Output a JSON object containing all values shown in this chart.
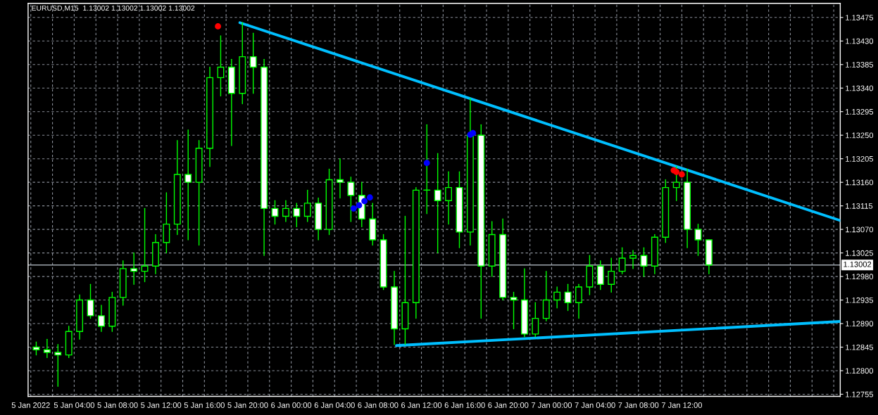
{
  "chart_data": {
    "type": "candlestick",
    "title": "EURUSD,M15  1.13002 1.13002 1.13002 1.13002",
    "color": "#00ff00",
    "x": [
      "2022-01-05T00:30",
      "2022-01-05T01:30",
      "2022-01-05T02:30",
      "2022-01-05T03:30",
      "2022-01-05T04:30",
      "2022-01-05T05:30",
      "2022-01-05T06:30",
      "2022-01-05T07:30",
      "2022-01-05T08:30",
      "2022-01-05T09:30",
      "2022-01-05T10:30",
      "2022-01-05T11:30",
      "2022-01-05T12:30",
      "2022-01-05T13:30",
      "2022-01-05T14:30",
      "2022-01-05T15:30",
      "2022-01-05T16:30",
      "2022-01-05T17:30",
      "2022-01-05T18:30",
      "2022-01-05T19:30",
      "2022-01-05T20:30",
      "2022-01-05T21:30",
      "2022-01-05T22:30",
      "2022-01-05T23:30",
      "2022-01-06T00:30",
      "2022-01-06T01:30",
      "2022-01-06T02:30",
      "2022-01-06T03:30",
      "2022-01-06T04:30",
      "2022-01-06T05:30",
      "2022-01-06T06:30",
      "2022-01-06T07:30",
      "2022-01-06T08:30",
      "2022-01-06T09:30",
      "2022-01-06T10:30",
      "2022-01-06T11:30",
      "2022-01-06T12:30",
      "2022-01-06T13:30",
      "2022-01-06T14:30",
      "2022-01-06T15:30",
      "2022-01-06T16:30",
      "2022-01-06T17:30",
      "2022-01-06T18:30",
      "2022-01-06T19:30",
      "2022-01-06T20:30",
      "2022-01-06T21:30",
      "2022-01-06T22:30",
      "2022-01-06T23:30",
      "2022-01-07T00:30",
      "2022-01-07T01:30",
      "2022-01-07T02:30",
      "2022-01-07T03:30",
      "2022-01-07T04:30",
      "2022-01-07T05:30",
      "2022-01-07T06:30",
      "2022-01-07T07:30",
      "2022-01-07T08:30",
      "2022-01-07T09:30",
      "2022-01-07T10:30",
      "2022-01-07T11:30",
      "2022-01-07T12:30",
      "2022-01-07T13:30",
      "2022-01-07T14:30"
    ],
    "ohlc": [
      [
        1.12845,
        1.12855,
        1.1283,
        1.1284
      ],
      [
        1.1284,
        1.1286,
        1.12825,
        1.12835
      ],
      [
        1.12835,
        1.1285,
        1.1277,
        1.1283
      ],
      [
        1.1283,
        1.12885,
        1.12825,
        1.12875
      ],
      [
        1.12875,
        1.12945,
        1.1286,
        1.12935
      ],
      [
        1.12935,
        1.12965,
        1.129,
        1.12905
      ],
      [
        1.12905,
        1.12925,
        1.12875,
        1.12885
      ],
      [
        1.12885,
        1.1295,
        1.12875,
        1.1294
      ],
      [
        1.1294,
        1.1301,
        1.12925,
        1.12995
      ],
      [
        1.12995,
        1.13025,
        1.12965,
        1.1299
      ],
      [
        1.1299,
        1.1311,
        1.1297,
        1.13
      ],
      [
        1.13,
        1.1306,
        1.12985,
        1.13045
      ],
      [
        1.13045,
        1.1314,
        1.13025,
        1.1308
      ],
      [
        1.1308,
        1.1324,
        1.1306,
        1.13175
      ],
      [
        1.13175,
        1.1326,
        1.1305,
        1.1316
      ],
      [
        1.1316,
        1.1324,
        1.1304,
        1.13225
      ],
      [
        1.13225,
        1.1338,
        1.1319,
        1.1336
      ],
      [
        1.1336,
        1.1344,
        1.13325,
        1.1338
      ],
      [
        1.1338,
        1.13395,
        1.1323,
        1.1333
      ],
      [
        1.1333,
        1.13465,
        1.1331,
        1.134
      ],
      [
        1.134,
        1.13445,
        1.1333,
        1.1338
      ],
      [
        1.1338,
        1.13395,
        1.1302,
        1.1311
      ],
      [
        1.1311,
        1.13125,
        1.1308,
        1.13095
      ],
      [
        1.13095,
        1.13125,
        1.13085,
        1.1311
      ],
      [
        1.1311,
        1.1312,
        1.13075,
        1.13095
      ],
      [
        1.13095,
        1.13145,
        1.13085,
        1.1312
      ],
      [
        1.1312,
        1.1313,
        1.1305,
        1.1307
      ],
      [
        1.1307,
        1.13185,
        1.1306,
        1.13165
      ],
      [
        1.13165,
        1.13205,
        1.1313,
        1.1316
      ],
      [
        1.1316,
        1.1317,
        1.13085,
        1.13135
      ],
      [
        1.13135,
        1.1316,
        1.13075,
        1.1309
      ],
      [
        1.1309,
        1.1312,
        1.1304,
        1.1305
      ],
      [
        1.1305,
        1.1306,
        1.12955,
        1.1296
      ],
      [
        1.1296,
        1.1299,
        1.1285,
        1.1288
      ],
      [
        1.1288,
        1.13095,
        1.1285,
        1.1293
      ],
      [
        1.1293,
        1.1315,
        1.129,
        1.13145
      ],
      [
        1.13145,
        1.1327,
        1.131,
        1.13145
      ],
      [
        1.13145,
        1.13215,
        1.13025,
        1.13125
      ],
      [
        1.13125,
        1.1318,
        1.1308,
        1.1315
      ],
      [
        1.1315,
        1.1318,
        1.13035,
        1.13065
      ],
      [
        1.13065,
        1.1332,
        1.1304,
        1.1325
      ],
      [
        1.1325,
        1.1327,
        1.129,
        1.13
      ],
      [
        1.13,
        1.13085,
        1.1298,
        1.1306
      ],
      [
        1.1306,
        1.1309,
        1.12935,
        1.1294
      ],
      [
        1.1294,
        1.1295,
        1.1288,
        1.12935
      ],
      [
        1.12935,
        1.12995,
        1.12865,
        1.1287
      ],
      [
        1.1287,
        1.1293,
        1.12865,
        1.129
      ],
      [
        1.129,
        1.1299,
        1.12895,
        1.12935
      ],
      [
        1.12935,
        1.1296,
        1.1292,
        1.1295
      ],
      [
        1.1295,
        1.12965,
        1.12915,
        1.1293
      ],
      [
        1.1293,
        1.12965,
        1.129,
        1.1296
      ],
      [
        1.1296,
        1.1302,
        1.12945,
        1.13
      ],
      [
        1.13,
        1.1301,
        1.12955,
        1.12965
      ],
      [
        1.12965,
        1.13015,
        1.1295,
        1.1299
      ],
      [
        1.1299,
        1.13035,
        1.12985,
        1.13015
      ],
      [
        1.13015,
        1.1303,
        1.12995,
        1.1302
      ],
      [
        1.1302,
        1.13035,
        1.1298,
        1.13
      ],
      [
        1.13,
        1.1306,
        1.12985,
        1.13055
      ],
      [
        1.13055,
        1.13165,
        1.13045,
        1.1315
      ],
      [
        1.1315,
        1.1319,
        1.13125,
        1.1316
      ],
      [
        1.1316,
        1.13185,
        1.13035,
        1.1307
      ],
      [
        1.1307,
        1.1308,
        1.1302,
        1.1305
      ],
      [
        1.1305,
        1.1305,
        1.12985,
        1.13002
      ]
    ],
    "series": [
      {
        "type": "line",
        "color": "#00bfff",
        "x": [
          "2022-01-05T19:16",
          "2022-01-08T02:36"
        ],
        "values": [
          1.13465,
          1.13087
        ]
      },
      {
        "type": "line",
        "color": "#00bfff",
        "x": [
          "2022-01-06T09:42",
          "2022-01-08T02:36"
        ],
        "values": [
          1.12848,
          1.12894
        ]
      },
      {
        "type": "scatter",
        "color": "#ff0000",
        "x": [
          "2022-01-05T17:15",
          "2022-01-07T11:15",
          "2022-01-07T11:30",
          "2022-01-07T12:00"
        ],
        "values": [
          1.13458,
          1.13183,
          1.1318,
          1.13175
        ]
      },
      {
        "type": "scatter",
        "color": "#0000ff",
        "x": [
          "2022-01-06T05:45",
          "2022-01-06T06:15",
          "2022-01-06T06:45",
          "2022-01-06T07:15",
          "2022-01-06T12:30",
          "2022-01-06T16:30",
          "2022-01-06T16:45"
        ],
        "values": [
          1.1311,
          1.13116,
          1.13124,
          1.13131,
          1.13197,
          1.13251,
          1.13254
        ]
      }
    ],
    "ref_lines": [
      {
        "axis": "y",
        "value": 1.13002,
        "label": "1.13002",
        "color": "#a0a8b0"
      }
    ],
    "xlim": [
      "2022-01-04T23:45",
      "2022-01-08T02:36"
    ],
    "ylim": [
      1.12751,
      1.13502
    ],
    "xticks": [
      {
        "value": "2022-01-05T00:00",
        "label": "5 Jan 2022"
      },
      {
        "value": "2022-01-05T02:00",
        "label": null
      },
      {
        "value": "2022-01-05T04:00",
        "label": "5 Jan 04:00"
      },
      {
        "value": "2022-01-05T06:00",
        "label": null
      },
      {
        "value": "2022-01-05T08:00",
        "label": "5 Jan 08:00"
      },
      {
        "value": "2022-01-05T10:00",
        "label": null
      },
      {
        "value": "2022-01-05T12:00",
        "label": "5 Jan 12:00"
      },
      {
        "value": "2022-01-05T14:00",
        "label": null
      },
      {
        "value": "2022-01-05T16:00",
        "label": "5 Jan 16:00"
      },
      {
        "value": "2022-01-05T18:00",
        "label": null
      },
      {
        "value": "2022-01-05T20:00",
        "label": "5 Jan 20:00"
      },
      {
        "value": "2022-01-05T22:00",
        "label": null
      },
      {
        "value": "2022-01-06T00:00",
        "label": "6 Jan 00:00"
      },
      {
        "value": "2022-01-06T02:00",
        "label": null
      },
      {
        "value": "2022-01-06T04:00",
        "label": "6 Jan 04:00"
      },
      {
        "value": "2022-01-06T06:00",
        "label": null
      },
      {
        "value": "2022-01-06T08:00",
        "label": "6 Jan 08:00"
      },
      {
        "value": "2022-01-06T10:00",
        "label": null
      },
      {
        "value": "2022-01-06T12:00",
        "label": "6 Jan 12:00"
      },
      {
        "value": "2022-01-06T14:00",
        "label": null
      },
      {
        "value": "2022-01-06T16:00",
        "label": "6 Jan 16:00"
      },
      {
        "value": "2022-01-06T18:00",
        "label": null
      },
      {
        "value": "2022-01-06T20:00",
        "label": "6 Jan 20:00"
      },
      {
        "value": "2022-01-06T22:00",
        "label": null
      },
      {
        "value": "2022-01-07T00:00",
        "label": "7 Jan 00:00"
      },
      {
        "value": "2022-01-07T02:00",
        "label": null
      },
      {
        "value": "2022-01-07T04:00",
        "label": "7 Jan 04:00"
      },
      {
        "value": "2022-01-07T06:00",
        "label": null
      },
      {
        "value": "2022-01-07T08:00",
        "label": "7 Jan 08:00"
      },
      {
        "value": "2022-01-07T10:00",
        "label": null
      },
      {
        "value": "2022-01-07T12:00",
        "label": "7 Jan 12:00"
      },
      {
        "value": "2022-01-07T14:00",
        "label": null
      },
      {
        "value": "2022-01-07T16:00",
        "label": null
      },
      {
        "value": "2022-01-07T18:00",
        "label": null
      },
      {
        "value": "2022-01-07T20:00",
        "label": null
      },
      {
        "value": "2022-01-07T22:00",
        "label": null
      },
      {
        "value": "2022-01-08T00:00",
        "label": null
      },
      {
        "value": "2022-01-08T02:00",
        "label": null
      }
    ],
    "yticks": [
      1.12755,
      {
        "value": 1.128,
        "label": "1.12800"
      },
      1.12845,
      {
        "value": 1.1289,
        "label": "1.12890"
      },
      1.12935,
      {
        "value": 1.1298,
        "label": "1.12980"
      },
      1.13025,
      {
        "value": 1.1307,
        "label": "1.13070"
      },
      1.13115,
      {
        "value": 1.1316,
        "label": "1.13160"
      },
      1.13205,
      {
        "value": 1.1325,
        "label": "1.13250"
      },
      1.13295,
      {
        "value": 1.1334,
        "label": "1.13340"
      },
      1.13385,
      {
        "value": 1.1343,
        "label": "1.13430"
      },
      1.13475
    ],
    "grid": true
  }
}
